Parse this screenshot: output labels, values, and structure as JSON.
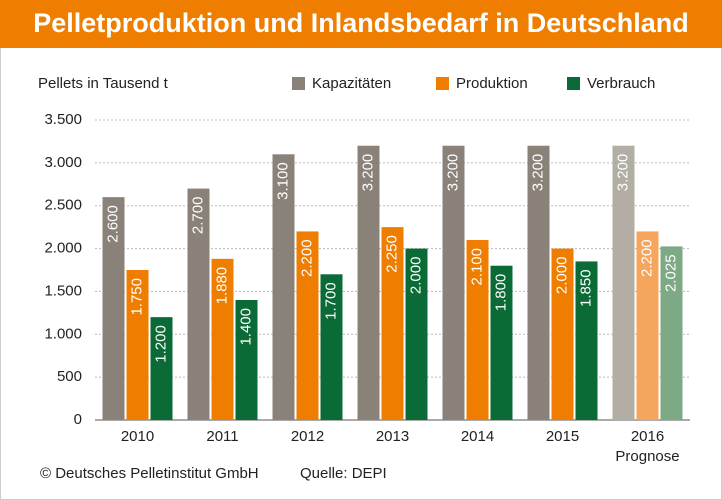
{
  "chart_data": {
    "type": "bar",
    "title": "Pelletproduktion und Inlandsbedarf in Deutschland",
    "y_label": "Pellets in Tausend t",
    "categories": [
      "2010",
      "2011",
      "2012",
      "2013",
      "2014",
      "2015",
      "2016"
    ],
    "annotations": [
      {
        "category": 6,
        "text": "Prognose"
      }
    ],
    "series": [
      {
        "name": "Kapazitäten",
        "color": "#8a8279",
        "colors": [
          "#8a8279",
          "#8a8279",
          "#8a8279",
          "#8a8279",
          "#8a8279",
          "#8a8279",
          "#b3aea4"
        ],
        "values": [
          2600,
          2700,
          3100,
          3200,
          3200,
          3200,
          3200
        ],
        "value_labels": [
          "2.600",
          "2.700",
          "3.100",
          "3.200",
          "3.200",
          "3.200",
          "3.200"
        ]
      },
      {
        "name": "Produktion",
        "color": "#ef7d00",
        "colors": [
          "#ef7d00",
          "#ef7d00",
          "#ef7d00",
          "#ef7d00",
          "#ef7d00",
          "#ef7d00",
          "#f6a65c"
        ],
        "values": [
          1750,
          1880,
          2200,
          2250,
          2100,
          2000,
          2200
        ],
        "value_labels": [
          "1.750",
          "1.880",
          "2.200",
          "2.250",
          "2.100",
          "2.000",
          "2.200"
        ]
      },
      {
        "name": "Verbrauch",
        "color": "#0b6b36",
        "colors": [
          "#0b6b36",
          "#0b6b36",
          "#0b6b36",
          "#0b6b36",
          "#0b6b36",
          "#0b6b36",
          "#7ea985"
        ],
        "values": [
          1200,
          1400,
          1700,
          2000,
          1800,
          1850,
          2025
        ],
        "value_labels": [
          "1.200",
          "1.400",
          "1.700",
          "2.000",
          "1.800",
          "1.850",
          "2.025"
        ]
      }
    ],
    "ylim": [
      0,
      3500
    ],
    "yticks": [
      0,
      500,
      {
        "value": 1000,
        "label": "1.000"
      },
      {
        "value": 1500,
        "label": "1.500"
      },
      {
        "value": 2000,
        "label": "2.000"
      },
      {
        "value": 2500,
        "label": "2.500"
      },
      {
        "value": 3000,
        "label": "3.000"
      },
      {
        "value": 3500,
        "label": "3.500"
      }
    ],
    "grid": true,
    "footer": {
      "copyright": "© Deutsches Pelletinstitut GmbH",
      "source": "Quelle: DEPI"
    }
  }
}
